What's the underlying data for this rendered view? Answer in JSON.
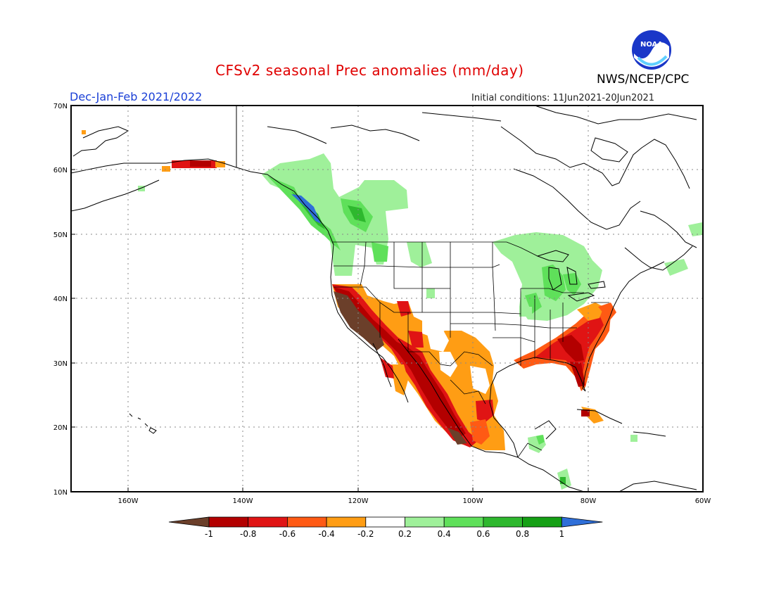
{
  "header": {
    "title": "CFSv2 seasonal Prec anomalies (mm/day)",
    "season": "Dec-Jan-Feb 2021/2022",
    "initial_conditions": "Initial conditions: 11Jun2021-20Jun2021",
    "agency": "NWS/NCEP/CPC",
    "logo_text": "NOAA"
  },
  "map": {
    "lat_labels": [
      "70N",
      "60N",
      "50N",
      "40N",
      "30N",
      "20N",
      "10N"
    ],
    "lon_labels": [
      "160W",
      "140W",
      "120W",
      "100W",
      "80W",
      "60W"
    ]
  },
  "colorbar": {
    "labels": [
      "-1",
      "-0.8",
      "-0.6",
      "-0.4",
      "-0.2",
      "0.2",
      "0.4",
      "0.6",
      "0.8",
      "1"
    ],
    "colors": [
      "#6b3f2a",
      "#b30000",
      "#e01414",
      "#ff5a14",
      "#ff9d14",
      "#ffffff",
      "#9ff09a",
      "#5fe05a",
      "#2eb82e",
      "#15a015",
      "#2f6fd8"
    ]
  },
  "anomaly_colors": {
    "strong_dry": "#6b3f2a",
    "very_dry": "#b30000",
    "dry": "#e01414",
    "mod_dry": "#ff5a14",
    "light_dry": "#ff9d14",
    "light_wet": "#9ff09a",
    "mod_wet": "#5fe05a",
    "wet": "#2eb82e",
    "very_wet": "#15a015",
    "strong_wet": "#2f6fd8"
  }
}
